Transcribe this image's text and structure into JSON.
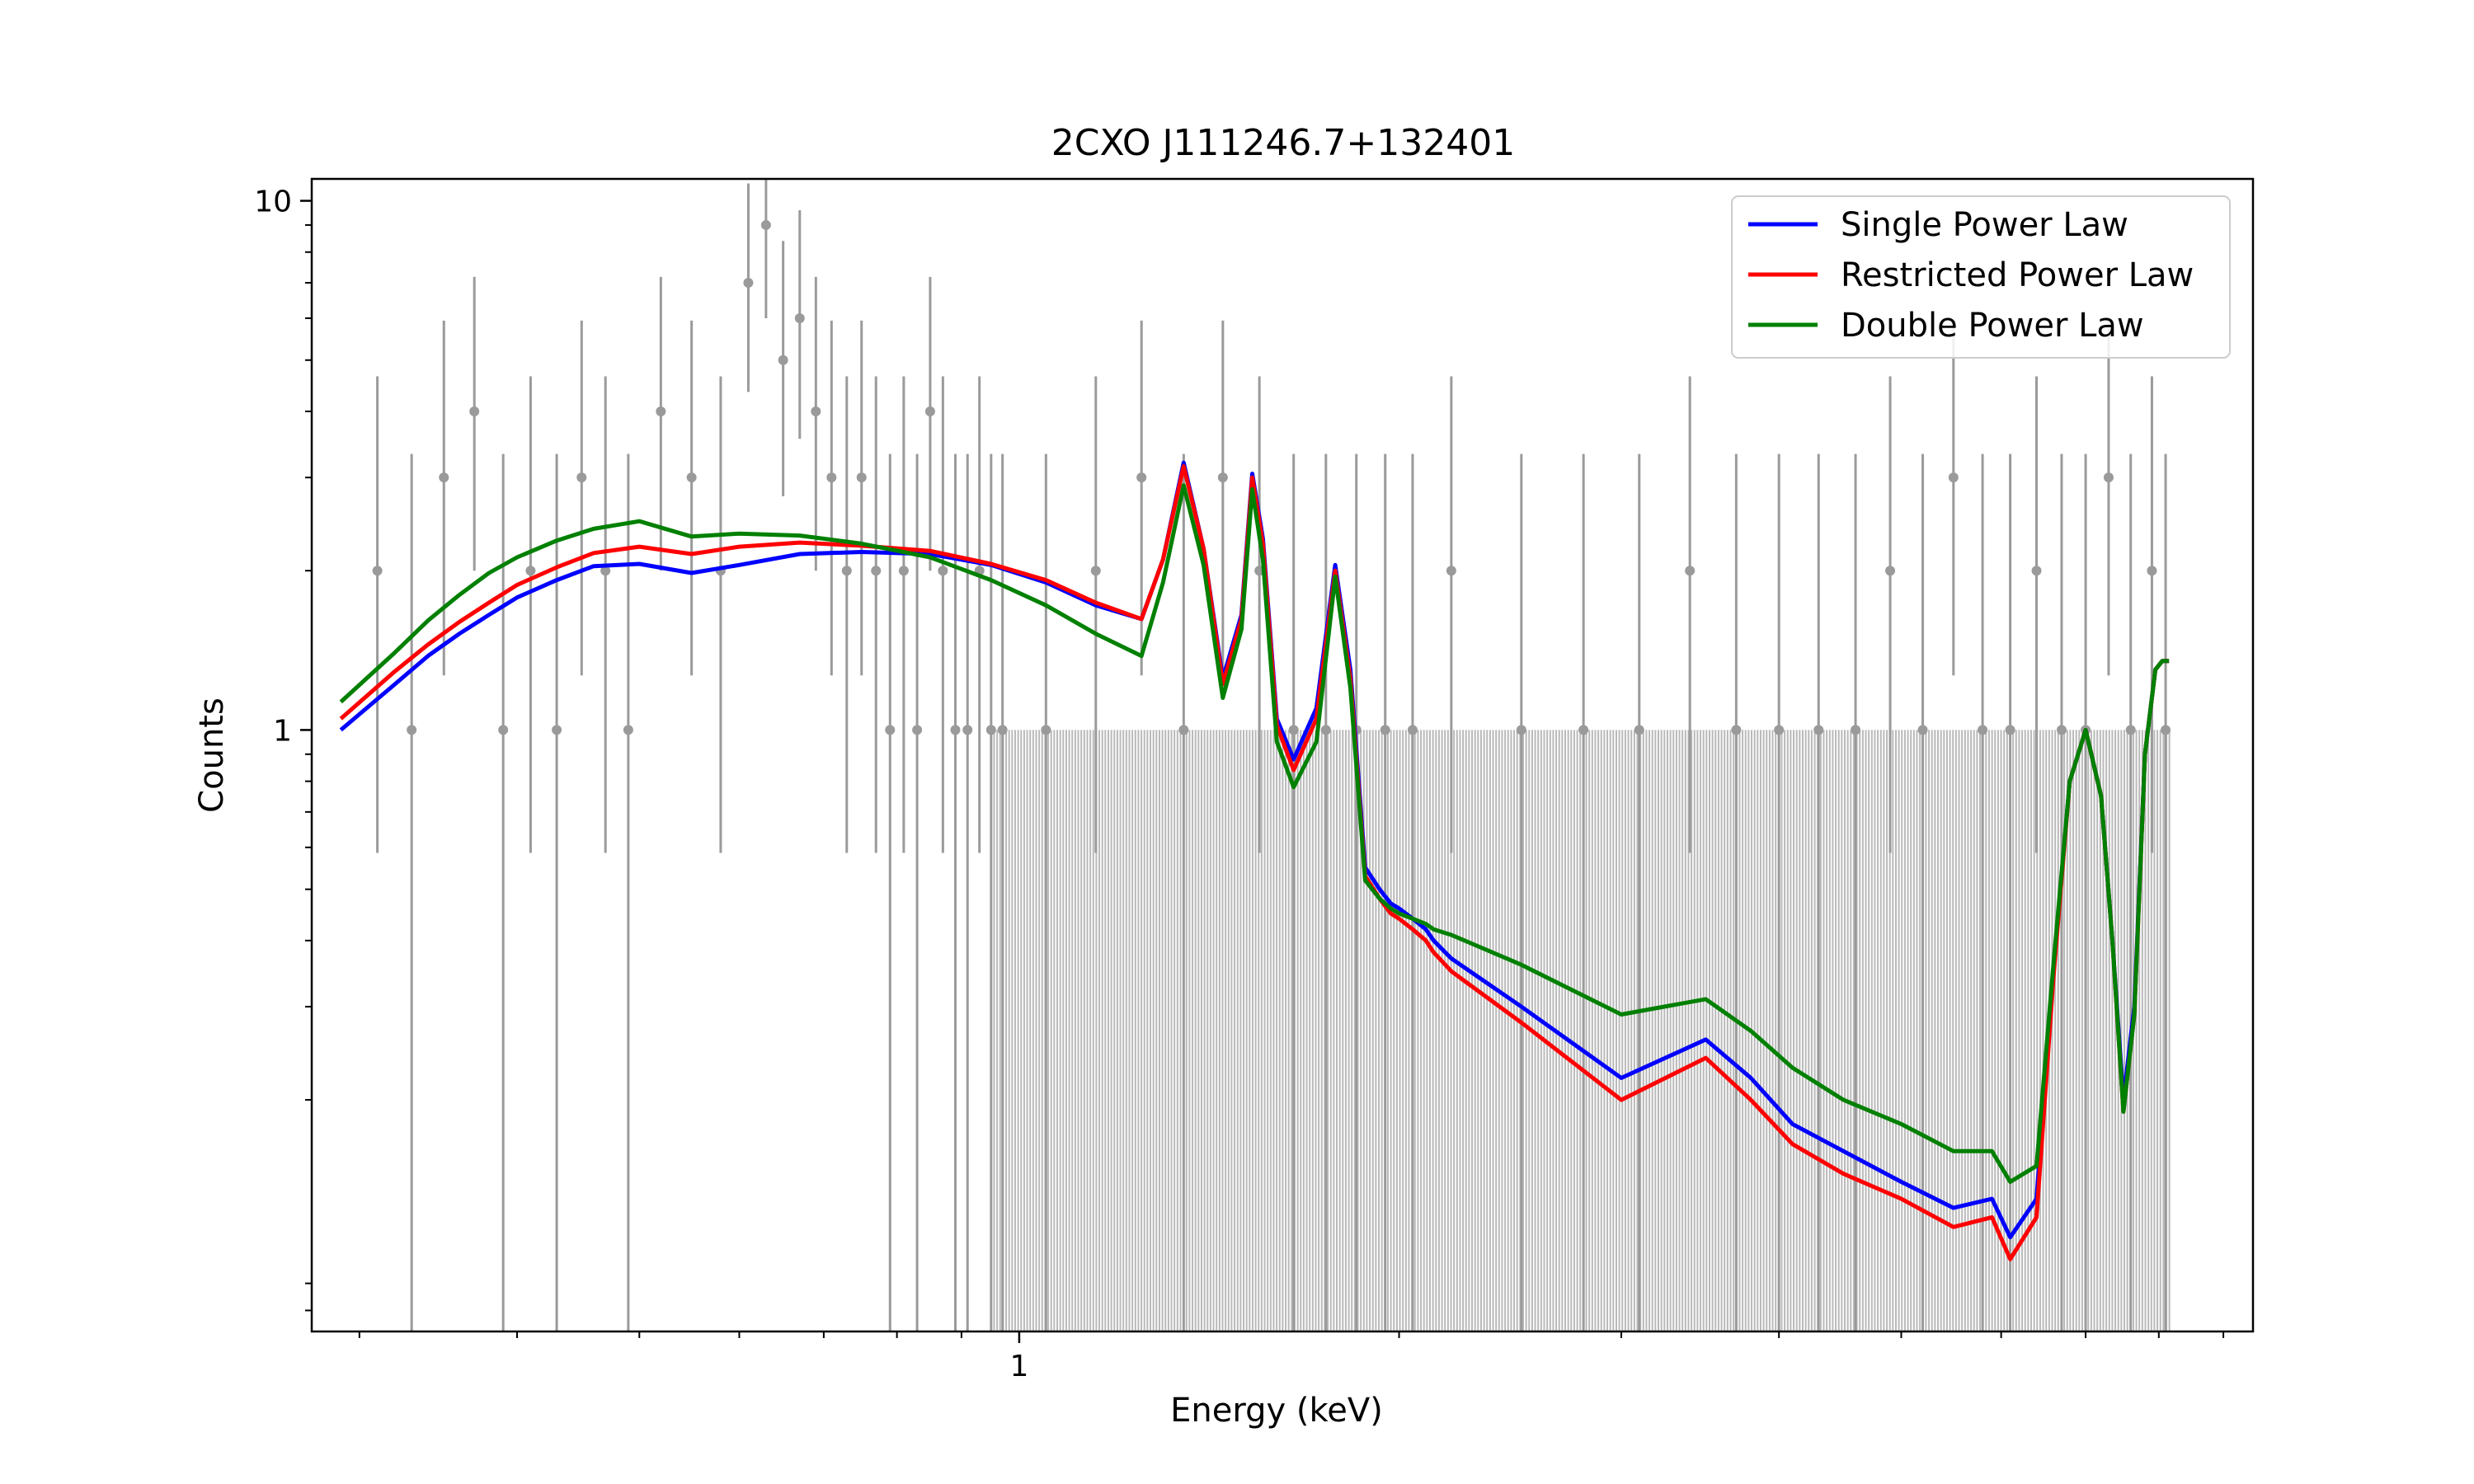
{
  "chart_data": {
    "type": "line",
    "title": "2CXO J111246.7+132401",
    "xlabel": "Energy (keV)",
    "ylabel": "Counts",
    "xscale": "log",
    "yscale": "log",
    "xlim": [
      0.275,
      9.5
    ],
    "ylim": [
      0.073,
      11
    ],
    "x_ticks": [
      1
    ],
    "x_tick_labels": [
      "1"
    ],
    "y_ticks": [
      1,
      10
    ],
    "y_tick_labels": [
      "1",
      "10"
    ],
    "legend_position": "top-right",
    "grid": false,
    "colors": {
      "single": "#0000ff",
      "restricted": "#ff0000",
      "double": "#008000",
      "data": "#9a9a9a",
      "data_band": "#808080"
    },
    "series": [
      {
        "name": "Single Power Law",
        "color": "#0000ff",
        "x": [
          0.29,
          0.32,
          0.34,
          0.36,
          0.38,
          0.4,
          0.43,
          0.46,
          0.5,
          0.55,
          0.6,
          0.67,
          0.75,
          0.85,
          0.95,
          1.05,
          1.15,
          1.25,
          1.3,
          1.35,
          1.4,
          1.45,
          1.5,
          1.53,
          1.56,
          1.6,
          1.65,
          1.72,
          1.78,
          1.83,
          1.88,
          1.93,
          1.97,
          2.0,
          2.05,
          2.1,
          2.13,
          2.2,
          2.5,
          3.0,
          3.5,
          3.8,
          4.1,
          4.5,
          5.0,
          5.5,
          5.9,
          6.1,
          6.4,
          6.6,
          6.8,
          7.0,
          7.2,
          7.35,
          7.5,
          7.65,
          7.8,
          7.95,
          8.05,
          8.15
        ],
        "values": [
          1.0,
          1.22,
          1.38,
          1.52,
          1.65,
          1.78,
          1.92,
          2.04,
          2.06,
          1.98,
          2.05,
          2.15,
          2.17,
          2.15,
          2.05,
          1.9,
          1.72,
          1.62,
          2.1,
          3.2,
          2.2,
          1.25,
          1.65,
          3.05,
          2.3,
          1.05,
          0.88,
          1.1,
          2.05,
          1.3,
          0.55,
          0.5,
          0.47,
          0.46,
          0.44,
          0.42,
          0.4,
          0.37,
          0.3,
          0.22,
          0.26,
          0.22,
          0.18,
          0.16,
          0.14,
          0.125,
          0.13,
          0.11,
          0.13,
          0.35,
          0.8,
          1.0,
          0.75,
          0.4,
          0.2,
          0.3,
          0.9,
          1.3,
          1.35,
          1.35
        ]
      },
      {
        "name": "Restricted Power Law",
        "color": "#ff0000",
        "x": [
          0.29,
          0.32,
          0.34,
          0.36,
          0.38,
          0.4,
          0.43,
          0.46,
          0.5,
          0.55,
          0.6,
          0.67,
          0.75,
          0.85,
          0.95,
          1.05,
          1.15,
          1.25,
          1.3,
          1.35,
          1.4,
          1.45,
          1.5,
          1.53,
          1.56,
          1.6,
          1.65,
          1.72,
          1.78,
          1.83,
          1.88,
          1.93,
          1.97,
          2.0,
          2.05,
          2.1,
          2.13,
          2.2,
          2.5,
          3.0,
          3.5,
          3.8,
          4.1,
          4.5,
          5.0,
          5.5,
          5.9,
          6.1,
          6.4,
          6.6,
          6.8,
          7.0,
          7.2,
          7.35,
          7.5,
          7.65,
          7.8,
          7.95,
          8.05,
          8.15
        ],
        "values": [
          1.05,
          1.29,
          1.45,
          1.6,
          1.74,
          1.88,
          2.03,
          2.16,
          2.22,
          2.15,
          2.22,
          2.26,
          2.23,
          2.18,
          2.06,
          1.92,
          1.74,
          1.62,
          2.1,
          3.15,
          2.2,
          1.22,
          1.62,
          3.0,
          2.25,
          1.02,
          0.84,
          1.05,
          2.0,
          1.25,
          0.53,
          0.48,
          0.45,
          0.44,
          0.42,
          0.4,
          0.38,
          0.35,
          0.28,
          0.2,
          0.24,
          0.2,
          0.165,
          0.145,
          0.13,
          0.115,
          0.12,
          0.1,
          0.12,
          0.34,
          0.8,
          1.0,
          0.75,
          0.4,
          0.19,
          0.29,
          0.9,
          1.3,
          1.35,
          1.35
        ]
      },
      {
        "name": "Double Power Law",
        "color": "#008000",
        "x": [
          0.29,
          0.32,
          0.34,
          0.36,
          0.38,
          0.4,
          0.43,
          0.46,
          0.5,
          0.55,
          0.6,
          0.67,
          0.75,
          0.85,
          0.95,
          1.05,
          1.15,
          1.25,
          1.3,
          1.35,
          1.4,
          1.45,
          1.5,
          1.53,
          1.56,
          1.6,
          1.65,
          1.72,
          1.78,
          1.83,
          1.88,
          1.93,
          1.97,
          2.0,
          2.05,
          2.1,
          2.13,
          2.2,
          2.5,
          3.0,
          3.5,
          3.8,
          4.1,
          4.5,
          5.0,
          5.5,
          5.9,
          6.1,
          6.4,
          6.6,
          6.8,
          7.0,
          7.2,
          7.35,
          7.5,
          7.65,
          7.8,
          7.95,
          8.05,
          8.15
        ],
        "values": [
          1.13,
          1.4,
          1.61,
          1.8,
          1.98,
          2.12,
          2.28,
          2.4,
          2.48,
          2.32,
          2.35,
          2.33,
          2.25,
          2.12,
          1.92,
          1.72,
          1.52,
          1.38,
          1.9,
          2.9,
          2.05,
          1.15,
          1.55,
          2.85,
          2.1,
          0.95,
          0.78,
          0.95,
          1.95,
          1.2,
          0.52,
          0.48,
          0.46,
          0.45,
          0.44,
          0.43,
          0.42,
          0.41,
          0.36,
          0.29,
          0.31,
          0.27,
          0.23,
          0.2,
          0.18,
          0.16,
          0.16,
          0.14,
          0.15,
          0.36,
          0.8,
          1.0,
          0.75,
          0.4,
          0.19,
          0.29,
          0.9,
          1.3,
          1.35,
          1.35
        ]
      },
      {
        "name": "",
        "type": "errorbar",
        "color": "#9a9a9a",
        "x": [
          0.31,
          0.33,
          0.35,
          0.37,
          0.39,
          0.41,
          0.43,
          0.45,
          0.47,
          0.49,
          0.52,
          0.55,
          0.58,
          0.61,
          0.63,
          0.65,
          0.67,
          0.69,
          0.71,
          0.73,
          0.75,
          0.77,
          0.79,
          0.81,
          0.83,
          0.85,
          0.87,
          0.89,
          0.91,
          0.93,
          0.95,
          0.97,
          1.05,
          1.15,
          1.25,
          1.35,
          1.45,
          1.55,
          1.65,
          1.75,
          1.85,
          1.95,
          2.05,
          2.2,
          2.5,
          2.8,
          3.1,
          3.4,
          3.7,
          4.0,
          4.3,
          4.6,
          4.9,
          5.2,
          5.5,
          5.8,
          6.1,
          6.4,
          6.7,
          7.0,
          7.3,
          7.6,
          7.9,
          8.1
        ],
        "values": [
          2,
          1,
          3,
          4,
          1,
          2,
          1,
          3,
          2,
          1,
          4,
          3,
          2,
          7,
          9,
          5,
          6,
          4,
          3,
          2,
          3,
          2,
          1,
          2,
          1,
          4,
          2,
          1,
          1,
          2,
          1,
          1,
          1,
          2,
          3,
          1,
          3,
          2,
          1,
          1,
          1,
          1,
          1,
          2,
          1,
          1,
          1,
          2,
          1,
          1,
          1,
          1,
          2,
          1,
          3,
          1,
          1,
          2,
          1,
          1,
          3,
          1,
          2,
          1
        ]
      }
    ]
  }
}
